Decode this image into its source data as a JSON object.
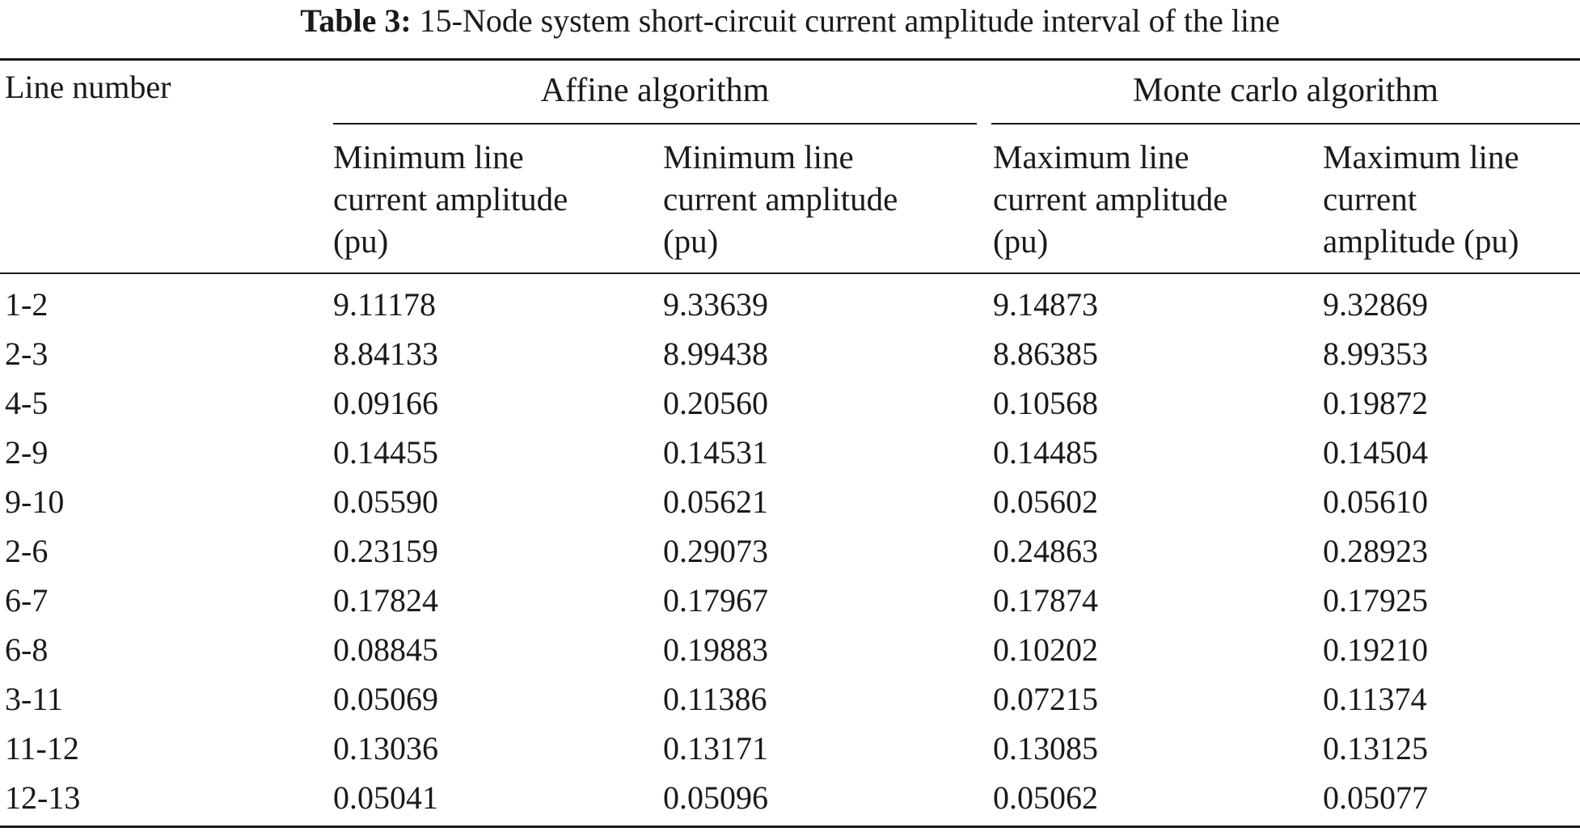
{
  "table": {
    "caption_label": "Table 3:",
    "caption_text": "15-Node system short-circuit current amplitude interval of the line",
    "col0_header": "Line number",
    "groups": [
      {
        "label": "Affine algorithm"
      },
      {
        "label": "Monte carlo algorithm"
      }
    ],
    "subheaders": [
      {
        "lines": [
          "Minimum line",
          "current amplitude",
          "(pu)"
        ]
      },
      {
        "lines": [
          "Minimum line",
          "current amplitude",
          "(pu)"
        ]
      },
      {
        "lines": [
          "Maximum line",
          "current amplitude",
          "(pu)"
        ]
      },
      {
        "lines": [
          "Maximum line",
          "current",
          "amplitude (pu)"
        ]
      }
    ],
    "rows": [
      {
        "line": "1-2",
        "cells": [
          "9.11178",
          "9.33639",
          "9.14873",
          "9.32869"
        ]
      },
      {
        "line": "2-3",
        "cells": [
          "8.84133",
          "8.99438",
          "8.86385",
          "8.99353"
        ]
      },
      {
        "line": "4-5",
        "cells": [
          "0.09166",
          "0.20560",
          "0.10568",
          "0.19872"
        ]
      },
      {
        "line": "2-9",
        "cells": [
          "0.14455",
          "0.14531",
          "0.14485",
          "0.14504"
        ]
      },
      {
        "line": "9-10",
        "cells": [
          "0.05590",
          "0.05621",
          "0.05602",
          "0.05610"
        ]
      },
      {
        "line": "2-6",
        "cells": [
          "0.23159",
          "0.29073",
          "0.24863",
          "0.28923"
        ]
      },
      {
        "line": "6-7",
        "cells": [
          "0.17824",
          "0.17967",
          "0.17874",
          "0.17925"
        ]
      },
      {
        "line": "6-8",
        "cells": [
          "0.08845",
          "0.19883",
          "0.10202",
          "0.19210"
        ]
      },
      {
        "line": "3-11",
        "cells": [
          "0.05069",
          "0.11386",
          "0.07215",
          "0.11374"
        ]
      },
      {
        "line": "11-12",
        "cells": [
          "0.13036",
          "0.13171",
          "0.13085",
          "0.13125"
        ]
      },
      {
        "line": "12-13",
        "cells": [
          "0.05041",
          "0.05096",
          "0.05062",
          "0.05077"
        ]
      }
    ]
  }
}
